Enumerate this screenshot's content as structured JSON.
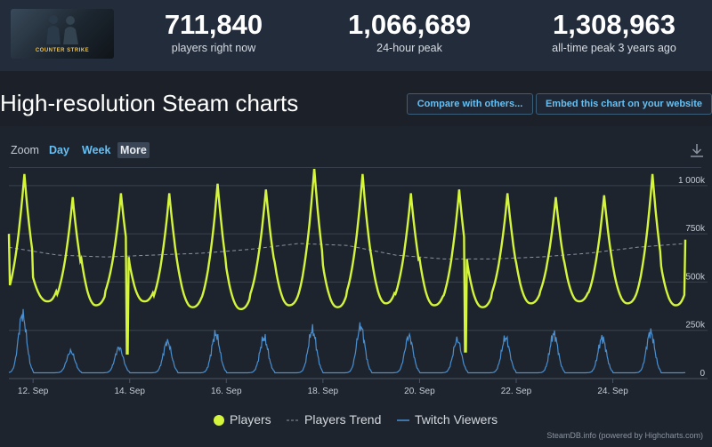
{
  "game": {
    "logo_icon": "counter-strike-logo",
    "logo_text": "COUNTER STRIKE"
  },
  "stats": [
    {
      "value": "711,840",
      "label": "players right now"
    },
    {
      "value": "1,066,689",
      "label": "24-hour peak"
    },
    {
      "value": "1,308,963",
      "label": "all-time peak 3 years ago"
    }
  ],
  "page": {
    "title": "High-resolution Steam charts"
  },
  "buttons": {
    "compare": "Compare with others...",
    "embed": "Embed this chart on your website"
  },
  "zoom": {
    "label": "Zoom",
    "options": [
      "Day",
      "Week",
      "More"
    ],
    "active": "More"
  },
  "icons": {
    "download": "download-icon"
  },
  "colors": {
    "players": "#d4f53c",
    "trend": "#8b93a0",
    "twitch": "#4a8fd0",
    "accent": "#66c0f4"
  },
  "chart_data": {
    "type": "line",
    "x_ticks": [
      "12. Sep",
      "14. Sep",
      "16. Sep",
      "18. Sep",
      "20. Sep",
      "22. Sep",
      "24. Sep"
    ],
    "y_ticks": [
      "0",
      "250k",
      "500k",
      "750k",
      "1 000k"
    ],
    "ylim": [
      0,
      1050000
    ],
    "grid": true,
    "legend_position": "bottom",
    "x_range_days": [
      11.5,
      25.5
    ],
    "series": [
      {
        "name": "Players",
        "daily_peaks": [
          1060000,
          940000,
          960000,
          960000,
          1010000,
          980000,
          1090000,
          1060000,
          960000,
          980000,
          960000,
          940000,
          950000,
          1060000
        ],
        "daily_troughs": [
          400000,
          380000,
          400000,
          370000,
          360000,
          380000,
          370000,
          390000,
          380000,
          370000,
          390000,
          400000,
          390000,
          380000
        ],
        "dips": [
          {
            "date": "13. Sep",
            "value": 130000
          },
          {
            "date": "20. Sep",
            "value": 140000
          }
        ],
        "start_value": 750000,
        "end_value": 720000
      },
      {
        "name": "Players Trend",
        "values": [
          680000,
          640000,
          630000,
          640000,
          650000,
          670000,
          700000,
          690000,
          640000,
          620000,
          620000,
          630000,
          650000,
          680000,
          700000
        ]
      },
      {
        "name": "Twitch Viewers",
        "daily_peaks": [
          330000,
          140000,
          160000,
          190000,
          230000,
          210000,
          250000,
          270000,
          220000,
          200000,
          210000,
          230000,
          210000,
          240000
        ],
        "baseline": 30000
      }
    ]
  },
  "credits": "SteamDB.info (powered by Highcharts.com)"
}
